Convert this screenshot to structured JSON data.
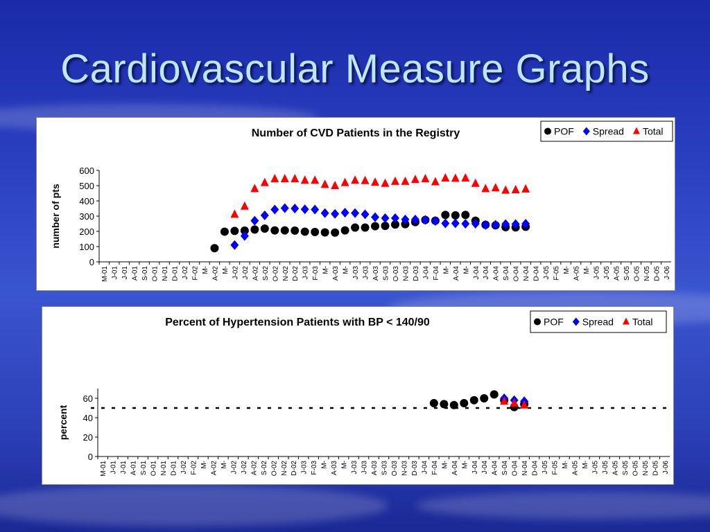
{
  "slide": {
    "title": "Cardiovascular Measure Graphs"
  },
  "chart_data": [
    {
      "type": "scatter",
      "title": "Number of CVD Patients in the Registry",
      "xlabel": "",
      "ylabel": "number of pts",
      "ylim": [
        0,
        600
      ],
      "yticks": [
        0,
        100,
        200,
        300,
        400,
        500,
        600
      ],
      "grid": false,
      "legend": "top-right",
      "categories": [
        "M-01",
        "J-01",
        "J-01",
        "A-01",
        "S-01",
        "O-01",
        "N-01",
        "D-01",
        "J-02",
        "F-02",
        "M-",
        "A-02",
        "M-",
        "J-02",
        "J-02",
        "A-02",
        "S-02",
        "O-02",
        "N-02",
        "D-02",
        "J-03",
        "F-03",
        "M-",
        "A-03",
        "M-",
        "J-03",
        "J-03",
        "A-03",
        "S-03",
        "O-03",
        "N-03",
        "D-03",
        "J-04",
        "F-04",
        "M-",
        "A-04",
        "M-",
        "J-04",
        "J-04",
        "A-04",
        "S-04",
        "O-04",
        "N-04",
        "D-04",
        "J-05",
        "F-05",
        "M-",
        "A-05",
        "M-",
        "J-05",
        "J-05",
        "A-05",
        "S-05",
        "O-05",
        "N-05",
        "D-05",
        "J-06"
      ],
      "series": [
        {
          "name": "POF",
          "color": "#000000",
          "marker": "circle",
          "points": [
            [
              11,
              90
            ],
            [
              12,
              198
            ],
            [
              13,
              203
            ],
            [
              14,
              205
            ],
            [
              15,
              212
            ],
            [
              16,
              218
            ],
            [
              17,
              206
            ],
            [
              18,
              206
            ],
            [
              19,
              205
            ],
            [
              20,
              198
            ],
            [
              21,
              196
            ],
            [
              22,
              193
            ],
            [
              23,
              192
            ],
            [
              24,
              206
            ],
            [
              25,
              225
            ],
            [
              26,
              225
            ],
            [
              27,
              234
            ],
            [
              28,
              236
            ],
            [
              29,
              245
            ],
            [
              30,
              247
            ],
            [
              31,
              261
            ],
            [
              32,
              275
            ],
            [
              33,
              270
            ],
            [
              34,
              308
            ],
            [
              35,
              305
            ],
            [
              36,
              308
            ],
            [
              37,
              270
            ],
            [
              38,
              243
            ],
            [
              39,
              240
            ],
            [
              40,
              228
            ],
            [
              41,
              226
            ],
            [
              42,
              230
            ]
          ]
        },
        {
          "name": "Spread",
          "color": "#0000ff",
          "marker": "diamond",
          "points": [
            [
              13,
              110
            ],
            [
              14,
              170
            ],
            [
              15,
              270
            ],
            [
              16,
              305
            ],
            [
              17,
              343
            ],
            [
              18,
              352
            ],
            [
              19,
              350
            ],
            [
              20,
              345
            ],
            [
              21,
              343
            ],
            [
              22,
              320
            ],
            [
              23,
              315
            ],
            [
              24,
              323
            ],
            [
              25,
              320
            ],
            [
              26,
              312
            ],
            [
              27,
              293
            ],
            [
              28,
              287
            ],
            [
              29,
              287
            ],
            [
              30,
              278
            ],
            [
              31,
              278
            ],
            [
              32,
              275
            ],
            [
              33,
              268
            ],
            [
              34,
              252
            ],
            [
              35,
              253
            ],
            [
              36,
              250
            ],
            [
              37,
              250
            ],
            [
              38,
              242
            ],
            [
              39,
              243
            ],
            [
              40,
              248
            ],
            [
              41,
              248
            ],
            [
              42,
              250
            ]
          ]
        },
        {
          "name": "Total",
          "color": "#ff0000",
          "marker": "triangle",
          "points": [
            [
              13,
              312
            ],
            [
              14,
              365
            ],
            [
              15,
              480
            ],
            [
              16,
              520
            ],
            [
              17,
              545
            ],
            [
              18,
              545
            ],
            [
              19,
              545
            ],
            [
              20,
              535
            ],
            [
              21,
              535
            ],
            [
              22,
              508
            ],
            [
              23,
              500
            ],
            [
              24,
              520
            ],
            [
              25,
              535
            ],
            [
              26,
              533
            ],
            [
              27,
              522
            ],
            [
              28,
              515
            ],
            [
              29,
              528
            ],
            [
              30,
              528
            ],
            [
              31,
              540
            ],
            [
              32,
              545
            ],
            [
              33,
              525
            ],
            [
              34,
              550
            ],
            [
              35,
              548
            ],
            [
              36,
              550
            ],
            [
              37,
              515
            ],
            [
              38,
              480
            ],
            [
              39,
              485
            ],
            [
              40,
              470
            ],
            [
              41,
              473
            ],
            [
              42,
              478
            ]
          ]
        }
      ]
    },
    {
      "type": "scatter",
      "title": "Percent of Hypertension Patients with BP < 140/90",
      "xlabel": "",
      "ylabel": "percent",
      "ylim": [
        0,
        70
      ],
      "yticks": [
        0,
        20,
        40,
        60
      ],
      "reference_line": 50,
      "grid": false,
      "legend": "top-right",
      "categories": [
        "M-01",
        "J-01",
        "J-01",
        "A-01",
        "S-01",
        "O-01",
        "N-01",
        "D-01",
        "J-02",
        "F-02",
        "M-",
        "A-02",
        "M-",
        "J-02",
        "J-02",
        "A-02",
        "S-02",
        "O-02",
        "N-02",
        "D-02",
        "J-03",
        "F-03",
        "M-",
        "A-03",
        "M-",
        "J-03",
        "J-03",
        "A-03",
        "S-03",
        "O-03",
        "N-03",
        "D-03",
        "J-04",
        "F-04",
        "M-",
        "A-04",
        "M-",
        "J-04",
        "J-04",
        "A-04",
        "S-04",
        "O-04",
        "N-04",
        "D-04",
        "J-05",
        "F-05",
        "M-",
        "A-05",
        "M-",
        "J-05",
        "J-05",
        "A-05",
        "S-05",
        "O-05",
        "N-05",
        "D-05",
        "J-06"
      ],
      "series": [
        {
          "name": "POF",
          "color": "#000000",
          "marker": "circle",
          "points": [
            [
              33,
              55
            ],
            [
              34,
              54
            ],
            [
              35,
              53
            ],
            [
              36,
              55
            ],
            [
              37,
              58
            ],
            [
              38,
              60
            ],
            [
              39,
              64
            ],
            [
              40,
              58
            ],
            [
              41,
              51
            ],
            [
              42,
              54
            ]
          ]
        },
        {
          "name": "Spread",
          "color": "#0000ff",
          "marker": "diamond",
          "points": [
            [
              40,
              60
            ],
            [
              41,
              58
            ],
            [
              42,
              57
            ]
          ]
        },
        {
          "name": "Total",
          "color": "#ff0000",
          "marker": "triangle",
          "points": [
            [
              40,
              57
            ],
            [
              41,
              55
            ],
            [
              42,
              53
            ]
          ]
        }
      ]
    }
  ]
}
